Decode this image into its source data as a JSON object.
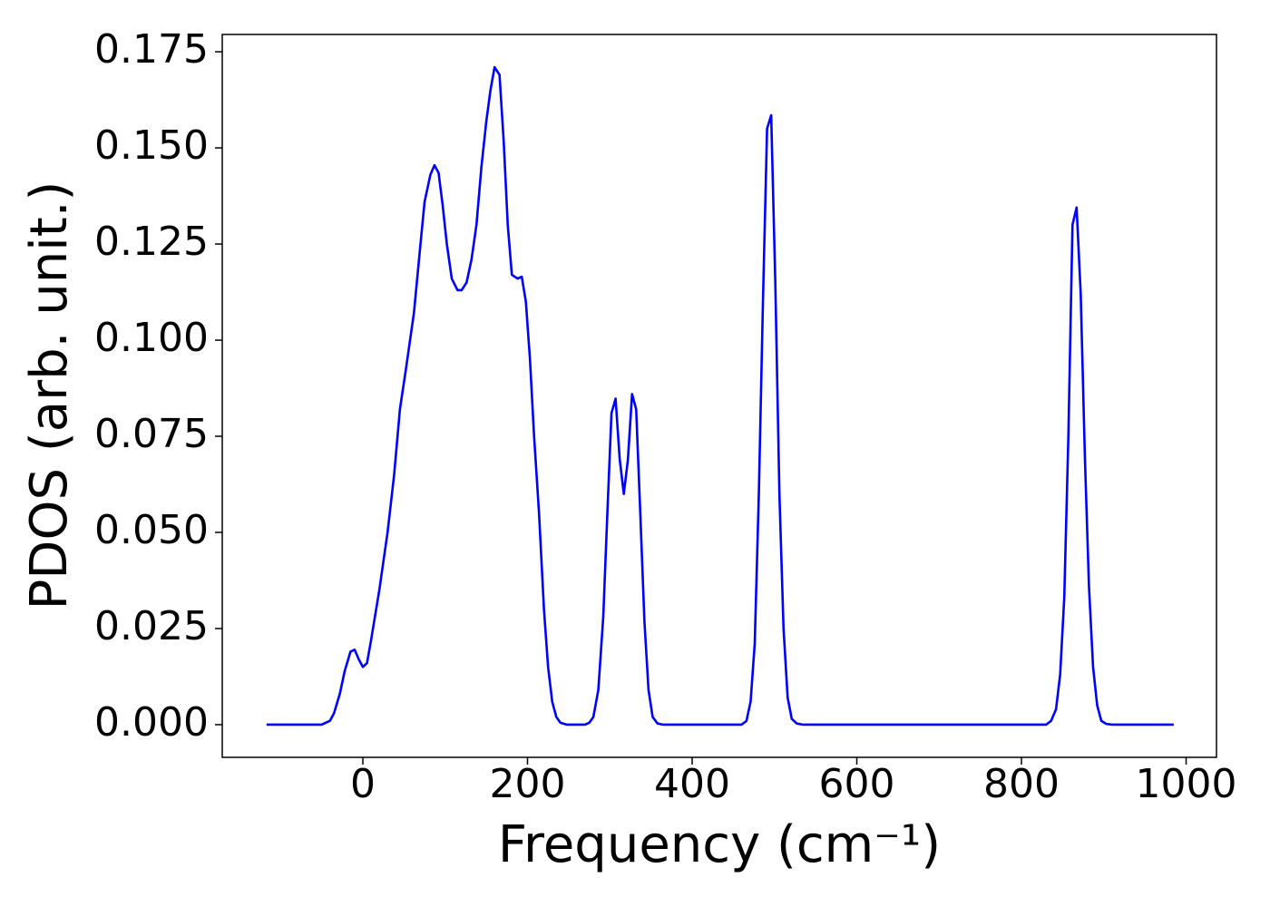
{
  "chart_data": {
    "type": "line",
    "xlabel": "Frequency (cm⁻¹)",
    "ylabel": "PDOS (arb. unit.)",
    "color": "#0000ff",
    "x": [
      -117,
      -50,
      -45,
      -40,
      -35,
      -28,
      -22,
      -15,
      -10,
      -5,
      0,
      5,
      10,
      20,
      30,
      38,
      45,
      52,
      62,
      70,
      75,
      82,
      87,
      92,
      97,
      102,
      108,
      115,
      120,
      126,
      132,
      138,
      144,
      150,
      155,
      160,
      166,
      171,
      176,
      181,
      188,
      193,
      198,
      203,
      208,
      214,
      220,
      225,
      230,
      235,
      240,
      248,
      270,
      275,
      280,
      286,
      292,
      297,
      302,
      307,
      312,
      317,
      322,
      327,
      332,
      337,
      342,
      347,
      352,
      358,
      365,
      460,
      466,
      471,
      476,
      481,
      486,
      491,
      496,
      501,
      506,
      511,
      516,
      521,
      527,
      535,
      830,
      836,
      842,
      847,
      852,
      857,
      862,
      867,
      872,
      877,
      882,
      887,
      892,
      897,
      903,
      910,
      985
    ],
    "values": [
      0,
      0,
      0.0005,
      0.001,
      0.003,
      0.008,
      0.014,
      0.019,
      0.0195,
      0.017,
      0.015,
      0.016,
      0.022,
      0.035,
      0.05,
      0.065,
      0.082,
      0.092,
      0.107,
      0.125,
      0.136,
      0.143,
      0.1455,
      0.1435,
      0.135,
      0.125,
      0.116,
      0.113,
      0.113,
      0.115,
      0.121,
      0.13,
      0.145,
      0.157,
      0.165,
      0.171,
      0.169,
      0.152,
      0.13,
      0.117,
      0.116,
      0.1165,
      0.11,
      0.095,
      0.075,
      0.055,
      0.03,
      0.015,
      0.006,
      0.002,
      0.0005,
      0,
      0,
      0.0005,
      0.002,
      0.009,
      0.028,
      0.055,
      0.081,
      0.0848,
      0.069,
      0.06,
      0.069,
      0.086,
      0.082,
      0.055,
      0.027,
      0.009,
      0.002,
      0.0003,
      0,
      0,
      0.001,
      0.006,
      0.021,
      0.06,
      0.11,
      0.155,
      0.1585,
      0.115,
      0.06,
      0.025,
      0.007,
      0.0015,
      0.0003,
      0,
      0,
      0.001,
      0.004,
      0.013,
      0.033,
      0.075,
      0.13,
      0.1345,
      0.112,
      0.07,
      0.036,
      0.015,
      0.005,
      0.001,
      0.0002,
      0,
      0
    ],
    "xlim": [
      -170.8,
      1036.9
    ],
    "ylim": [
      -0.0085,
      0.1795
    ],
    "xticks": [
      0,
      200,
      400,
      600,
      800,
      1000
    ],
    "yticks": [
      {
        "value": 0,
        "label": "0.000"
      },
      {
        "value": 0.025,
        "label": "0.025"
      },
      {
        "value": 0.05,
        "label": "0.050"
      },
      {
        "value": 0.075,
        "label": "0.075"
      },
      {
        "value": 0.1,
        "label": "0.100"
      },
      {
        "value": 0.125,
        "label": "0.125"
      },
      {
        "value": 0.15,
        "label": "0.150"
      },
      {
        "value": 0.175,
        "label": "0.175"
      }
    ]
  }
}
